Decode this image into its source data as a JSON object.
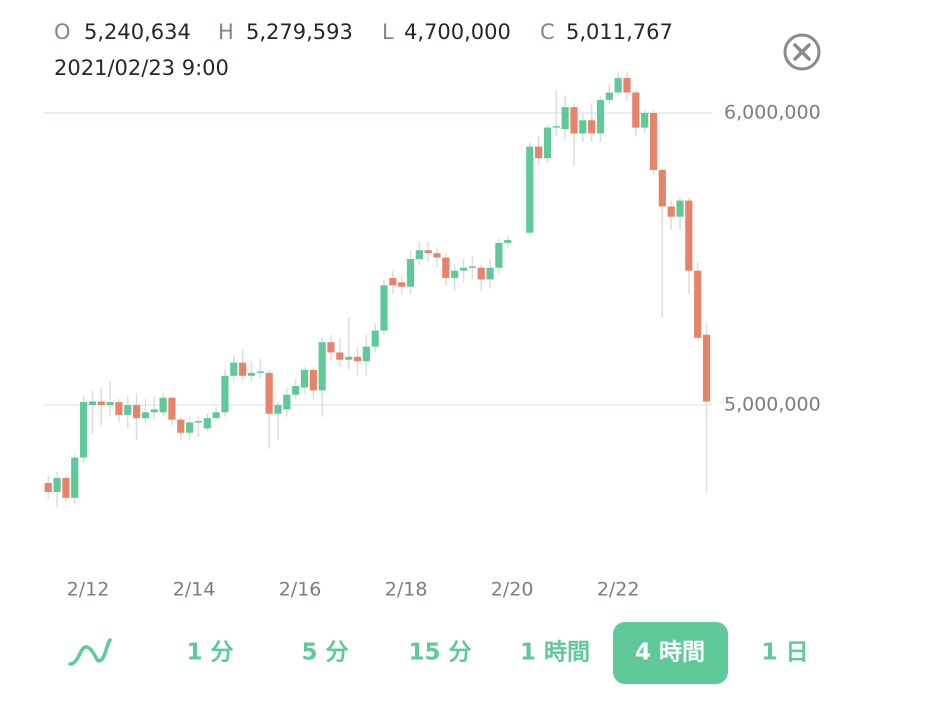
{
  "header": {
    "open_label": "O",
    "open": "5,240,634",
    "high_label": "H",
    "high": "5,279,593",
    "low_label": "L",
    "low": "4,700,000",
    "close_label": "C",
    "close": "5,011,767",
    "datetime": "2021/02/23 9:00"
  },
  "chart_data": {
    "type": "candlestick",
    "x": [
      11.25,
      11.417,
      11.583,
      11.75,
      11.917,
      12.083,
      12.25,
      12.417,
      12.583,
      12.75,
      12.917,
      13.083,
      13.25,
      13.417,
      13.583,
      13.75,
      13.917,
      14.083,
      14.25,
      14.417,
      14.583,
      14.75,
      14.917,
      15.083,
      15.25,
      15.417,
      15.583,
      15.75,
      15.917,
      16.083,
      16.25,
      16.417,
      16.583,
      16.75,
      16.917,
      17.083,
      17.25,
      17.417,
      17.583,
      17.75,
      17.917,
      18.083,
      18.25,
      18.417,
      18.583,
      18.75,
      18.917,
      19.083,
      19.25,
      19.417,
      19.583,
      19.75,
      19.917,
      20.333,
      20.5,
      20.667,
      20.833,
      21,
      21.167,
      21.333,
      21.5,
      21.667,
      21.833,
      22,
      22.167,
      22.333,
      22.5,
      22.667,
      22.833,
      23,
      23.167,
      23.333,
      23.5,
      23.667
    ],
    "open": [
      4733000,
      4702000,
      4750000,
      4682000,
      4820000,
      5000000,
      5012000,
      5000000,
      5010000,
      4966000,
      5000000,
      4955000,
      4975000,
      4975000,
      5025000,
      4950000,
      4905000,
      4940000,
      4920000,
      4955000,
      4975000,
      5100000,
      5145000,
      5100000,
      5110000,
      5110000,
      4970000,
      4985000,
      5035000,
      5060000,
      5120000,
      5050000,
      5215000,
      5180000,
      5155000,
      5165000,
      5150000,
      5200000,
      5255000,
      5435000,
      5420000,
      5405000,
      5500000,
      5530000,
      5520000,
      5505000,
      5435000,
      5460000,
      5470000,
      5470000,
      5430000,
      5470000,
      5555000,
      5590000,
      5885000,
      5845000,
      5950000,
      5945000,
      6020000,
      5930000,
      5975000,
      5930000,
      6045000,
      6070000,
      6120000,
      6070000,
      5950000,
      6000000,
      5805000,
      5680000,
      5645000,
      5700000,
      5460000,
      5240634
    ],
    "high": [
      4760000,
      4770000,
      4760000,
      4830000,
      5030000,
      5050000,
      5060000,
      5080000,
      5020000,
      5030000,
      5040000,
      5020000,
      5030000,
      5040000,
      5030000,
      4960000,
      4960000,
      4960000,
      4970000,
      4990000,
      5120000,
      5170000,
      5190000,
      5150000,
      5160000,
      5120000,
      5010000,
      5060000,
      5090000,
      5130000,
      5130000,
      5230000,
      5240000,
      5230000,
      5300000,
      5200000,
      5240000,
      5280000,
      5430000,
      5460000,
      5440000,
      5530000,
      5560000,
      5560000,
      5540000,
      5520000,
      5480000,
      5500000,
      5510000,
      5480000,
      5500000,
      5570000,
      5580000,
      5900000,
      5920000,
      5960000,
      6080000,
      6060000,
      6030000,
      6000000,
      6030000,
      6060000,
      6100000,
      6140000,
      6140000,
      6080000,
      6010000,
      6010000,
      5810000,
      5700000,
      5710000,
      5710000,
      5490000,
      5279593
    ],
    "low": [
      4680000,
      4650000,
      4670000,
      4660000,
      4800000,
      4900000,
      4930000,
      4960000,
      4940000,
      4920000,
      4880000,
      4940000,
      4950000,
      4960000,
      4930000,
      4880000,
      4880000,
      4890000,
      4910000,
      4950000,
      4960000,
      5080000,
      5080000,
      5080000,
      5090000,
      4850000,
      4880000,
      4960000,
      5020000,
      5040000,
      5020000,
      4960000,
      5150000,
      5130000,
      5120000,
      5100000,
      5100000,
      5180000,
      5240000,
      5380000,
      5380000,
      5380000,
      5480000,
      5490000,
      5470000,
      5410000,
      5390000,
      5420000,
      5430000,
      5390000,
      5400000,
      5450000,
      5540000,
      5580000,
      5820000,
      5830000,
      5920000,
      5910000,
      5820000,
      5900000,
      5900000,
      5900000,
      6030000,
      6060000,
      6040000,
      5920000,
      5930000,
      5790000,
      5300000,
      5600000,
      5600000,
      5380000,
      5220000,
      4700000
    ],
    "close": [
      4702000,
      4750000,
      4682000,
      4820000,
      5010000,
      5012000,
      5000000,
      5010000,
      4966000,
      5000000,
      4955000,
      4975000,
      4985000,
      5025000,
      4950000,
      4905000,
      4940000,
      4945000,
      4955000,
      4975000,
      5100000,
      5145000,
      5100000,
      5110000,
      5115000,
      4970000,
      5000000,
      5035000,
      5065000,
      5120000,
      5050000,
      5215000,
      5180000,
      5155000,
      5165000,
      5150000,
      5200000,
      5255000,
      5410000,
      5410000,
      5405000,
      5500000,
      5530000,
      5520000,
      5505000,
      5435000,
      5460000,
      5470000,
      5475000,
      5430000,
      5470000,
      5555000,
      5565000,
      5885000,
      5845000,
      5950000,
      5955000,
      6020000,
      5930000,
      5975000,
      5930000,
      6045000,
      6070000,
      6120000,
      6070000,
      5950000,
      6000000,
      5805000,
      5680000,
      5645000,
      5700000,
      5460000,
      5230000,
      5011767
    ],
    "xlim": [
      11.17,
      23.77
    ],
    "xticks": [
      {
        "value": 12,
        "label": "2/12"
      },
      {
        "value": 14,
        "label": "2/14"
      },
      {
        "value": 16,
        "label": "2/16"
      },
      {
        "value": 18,
        "label": "2/18"
      },
      {
        "value": 20,
        "label": "2/20"
      },
      {
        "value": 22,
        "label": "2/22"
      }
    ],
    "ylim": [
      4600000,
      6150000
    ],
    "yticks": [
      {
        "value": 5000000,
        "label": "5,000,000"
      },
      {
        "value": 6000000,
        "label": "6,000,000"
      }
    ],
    "grid": true,
    "up_color": "#5fc99a",
    "down_color": "#e8836b",
    "wick_color": "#dddddd"
  },
  "timeframes": [
    "1 分",
    "5 分",
    "15 分",
    "1 時間",
    "4 時間",
    "1 日"
  ],
  "selected_timeframe": 4
}
